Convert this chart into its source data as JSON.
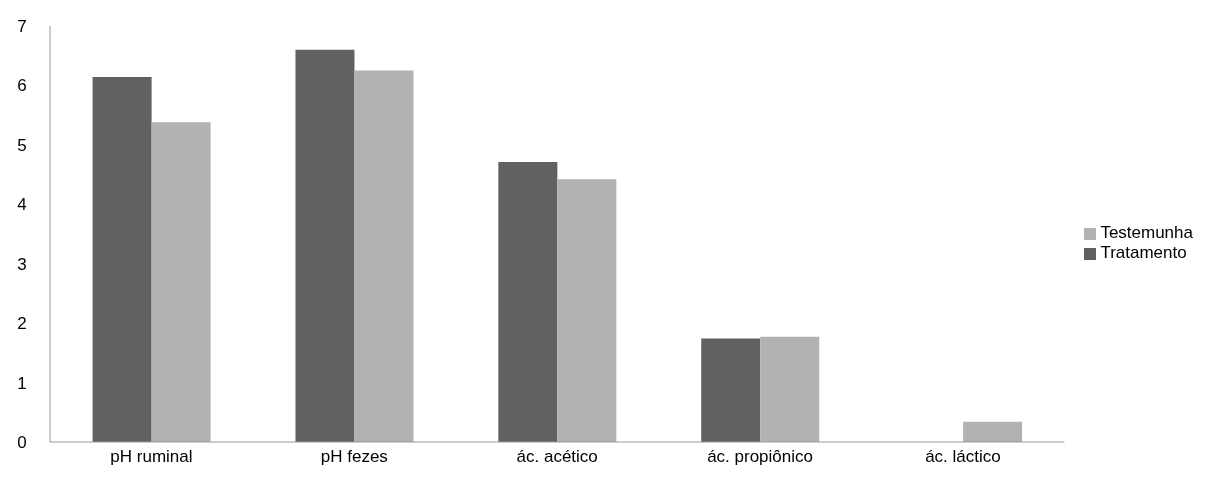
{
  "chart_data": {
    "type": "bar",
    "categories": [
      "pH ruminal",
      "pH fezes",
      "ác. acético",
      "ác. propiônico",
      "ác. láctico"
    ],
    "series": [
      {
        "name": "Tratamento",
        "color": "#616161",
        "values": [
          6.14,
          6.6,
          4.71,
          1.74,
          0
        ]
      },
      {
        "name": "Testemunha",
        "color": "#b2b2b2",
        "values": [
          5.38,
          6.25,
          4.42,
          1.77,
          0.34
        ]
      }
    ],
    "ylim": [
      0,
      7
    ],
    "yticks": [
      0,
      1,
      2,
      3,
      4,
      5,
      6,
      7
    ],
    "grid": false,
    "legend": "right"
  }
}
